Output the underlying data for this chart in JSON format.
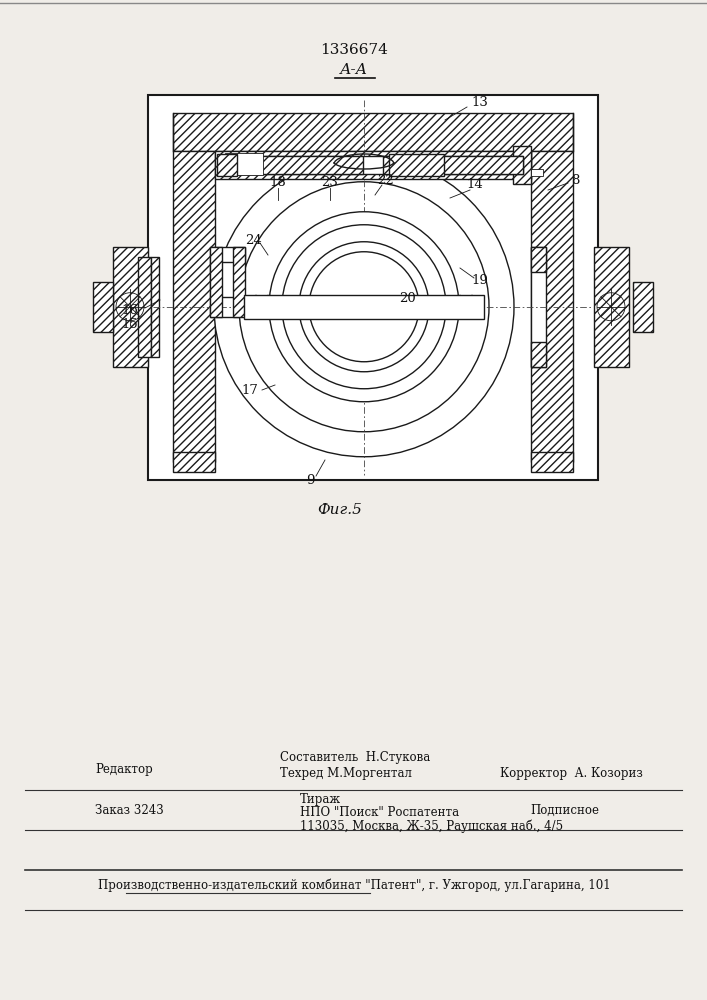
{
  "patent_number": "1336674",
  "section_label": "А-А",
  "fig_label": "Фиг.5",
  "bg_color": "#f0ede8",
  "drawing_bg": "#ffffff",
  "line_color": "#1a1a1a",
  "footer": {
    "col1_line1": "Редактор",
    "col2_line1": "Составитель  Н.Стукова",
    "col2_line2": "Техред М.Моргентал",
    "col3_line2": "Корректор  А. Козориз",
    "row2_col1": "Заказ 3243",
    "row2_col2a": "Тираж",
    "row2_col2b": "НПО \"Поиск\" Роспатента",
    "row2_col2c": "113035, Москва, Ж-35, Раушская наб., 4/5",
    "row2_col3": "Подписное",
    "bottom": "Производственно-издательский комбинат \"Патент\", г. Ужгород, ул.Гагарина, 101"
  }
}
